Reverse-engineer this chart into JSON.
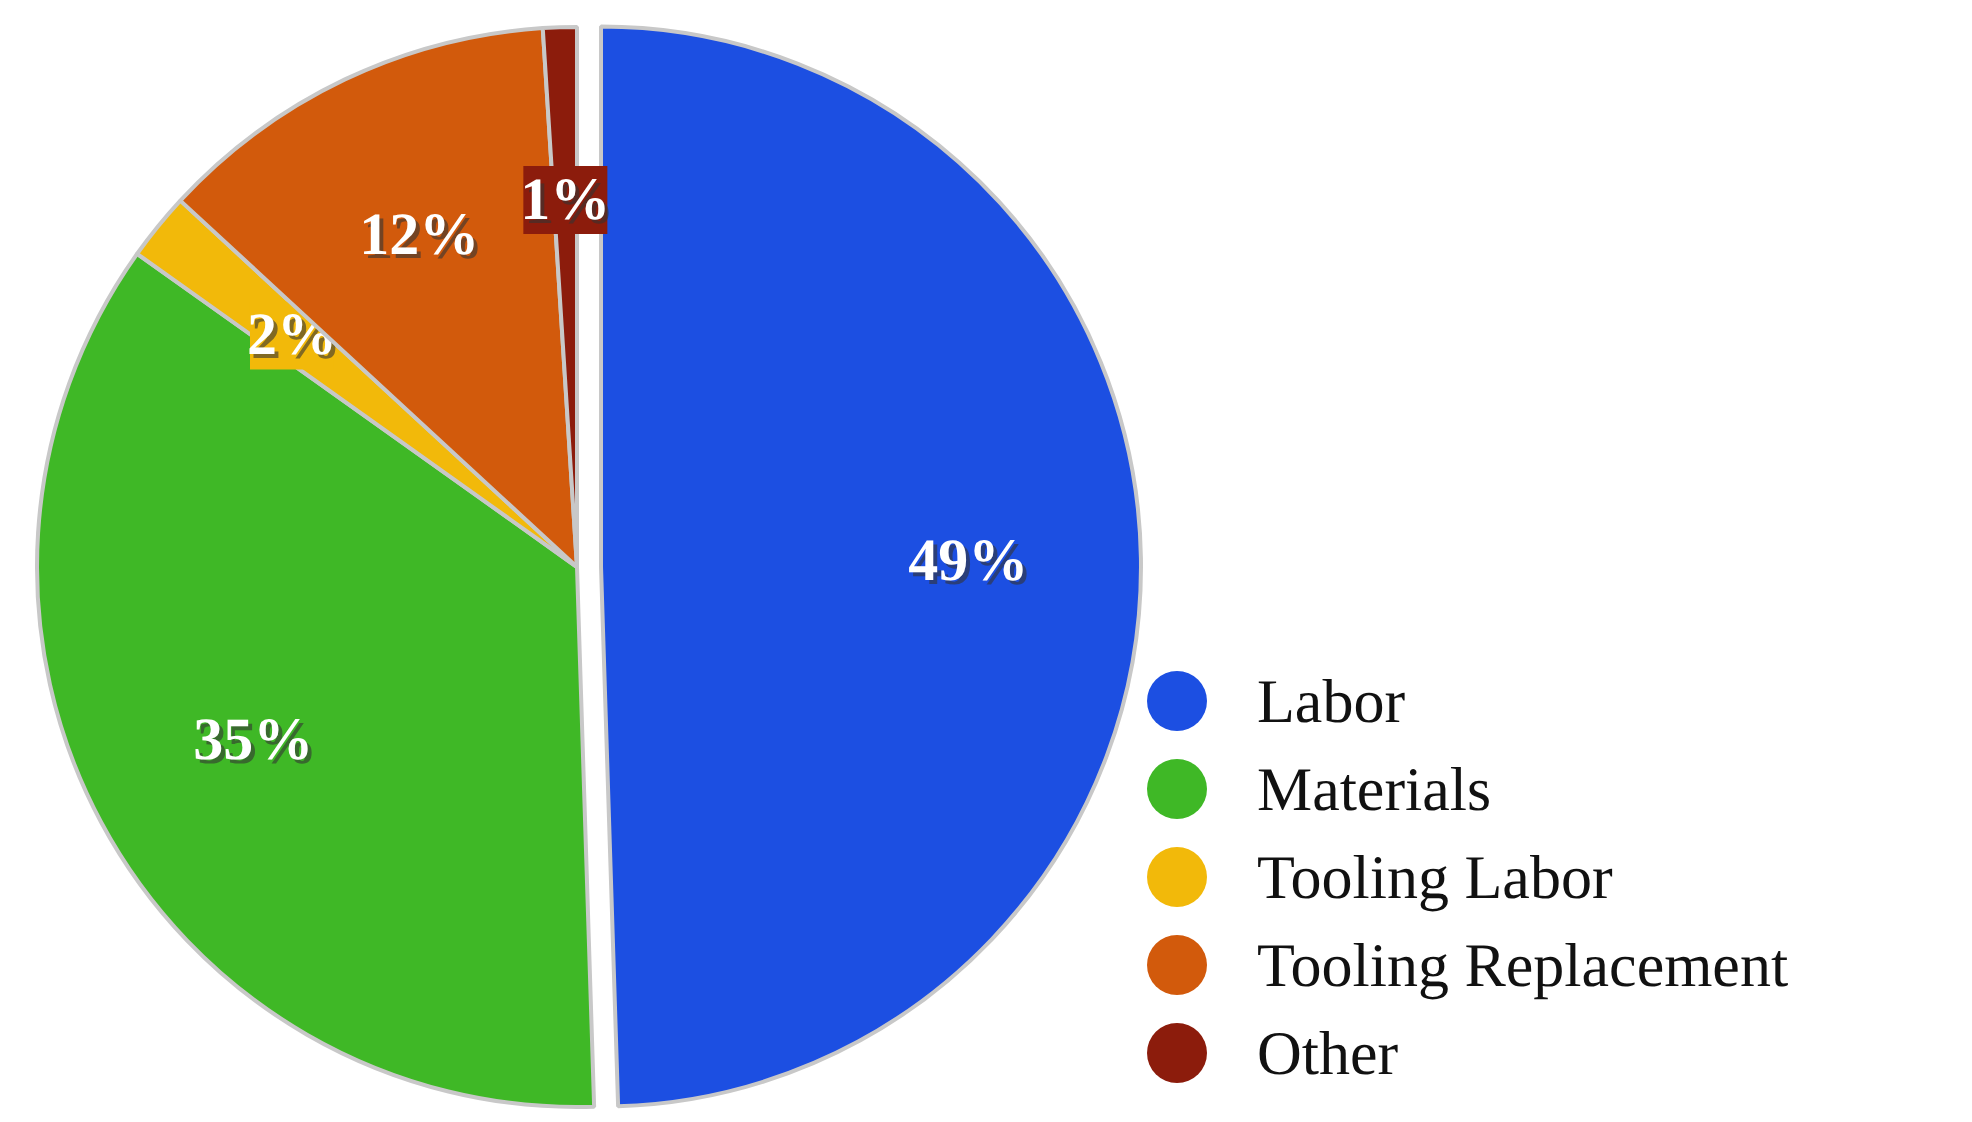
{
  "chart_data": {
    "type": "pie",
    "categories": [
      "Labor",
      "Materials",
      "Tooling Labor",
      "Tooling Replacement",
      "Other"
    ],
    "values": [
      49,
      35,
      2,
      12,
      1
    ],
    "colors": [
      "#1c4fe2",
      "#3fb826",
      "#f2b90a",
      "#d25a0c",
      "#8c1c0c"
    ],
    "value_labels": [
      "49%",
      "35%",
      "2%",
      "12%",
      "1%"
    ],
    "legend": "bottom right"
  }
}
